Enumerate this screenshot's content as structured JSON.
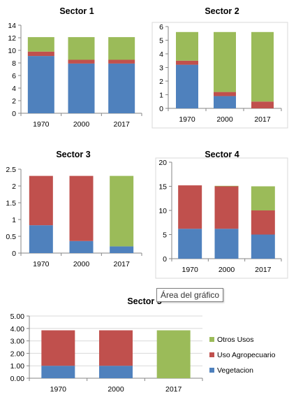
{
  "colors": {
    "vegetacion": "#4f81bd",
    "agropecuario": "#c0504d",
    "otros": "#9bbb59",
    "axis": "#868686",
    "text": "#000000"
  },
  "tooltip": {
    "text": "Área del gráfico"
  },
  "chart_data": [
    {
      "type": "bar",
      "stacked": true,
      "title": "Sector 1",
      "categories": [
        "1970",
        "2000",
        "2017"
      ],
      "ylim": [
        0,
        14
      ],
      "yticks": [
        0,
        2,
        4,
        6,
        8,
        10,
        12,
        14
      ],
      "ytick_labels": [
        "0",
        "2",
        "4",
        "6",
        "8",
        "10",
        "12",
        "14"
      ],
      "grid": false,
      "series": [
        {
          "key": "vegetacion",
          "values": [
            9.1,
            7.9,
            7.9
          ]
        },
        {
          "key": "agropecuario",
          "values": [
            0.7,
            0.6,
            0.6
          ]
        },
        {
          "key": "otros",
          "values": [
            2.3,
            3.6,
            3.6
          ]
        }
      ]
    },
    {
      "type": "bar",
      "stacked": true,
      "title": "Sector 2",
      "categories": [
        "1970",
        "2000",
        "2017"
      ],
      "ylim": [
        0,
        6
      ],
      "yticks": [
        0,
        1,
        2,
        3,
        4,
        5,
        6
      ],
      "ytick_labels": [
        "0",
        "1",
        "2",
        "3",
        "4",
        "5",
        "6"
      ],
      "grid": false,
      "series": [
        {
          "key": "vegetacion",
          "values": [
            3.2,
            0.9,
            0.0
          ]
        },
        {
          "key": "agropecuario",
          "values": [
            0.3,
            0.3,
            0.5
          ]
        },
        {
          "key": "otros",
          "values": [
            2.1,
            4.4,
            5.1
          ]
        }
      ]
    },
    {
      "type": "bar",
      "stacked": true,
      "title": "Sector 3",
      "categories": [
        "1970",
        "2000",
        "2017"
      ],
      "ylim": [
        0,
        2.5
      ],
      "yticks": [
        0,
        0.5,
        1,
        1.5,
        2,
        2.5
      ],
      "ytick_labels": [
        "0",
        "0.5",
        "1",
        "1.5",
        "2",
        "2.5"
      ],
      "grid": false,
      "series": [
        {
          "key": "vegetacion",
          "values": [
            0.83,
            0.36,
            0.2
          ]
        },
        {
          "key": "agropecuario",
          "values": [
            1.47,
            1.94,
            0.0
          ]
        },
        {
          "key": "otros",
          "values": [
            0.0,
            0.0,
            2.1
          ]
        }
      ]
    },
    {
      "type": "bar",
      "stacked": true,
      "title": "Sector 4",
      "categories": [
        "1970",
        "2000",
        "2017"
      ],
      "ylim": [
        0,
        20
      ],
      "yticks": [
        0,
        5,
        10,
        15,
        20
      ],
      "ytick_labels": [
        "0",
        "5",
        "10",
        "15",
        "20"
      ],
      "grid": false,
      "series": [
        {
          "key": "vegetacion",
          "values": [
            6.2,
            6.2,
            5.0
          ]
        },
        {
          "key": "agropecuario",
          "values": [
            9.0,
            8.8,
            5.0
          ]
        },
        {
          "key": "otros",
          "values": [
            0.0,
            0.1,
            5.0
          ]
        }
      ]
    },
    {
      "type": "bar",
      "stacked": true,
      "title": "Sector 5",
      "categories": [
        "1970",
        "2000",
        "2017"
      ],
      "ylim": [
        0,
        5
      ],
      "yticks": [
        0,
        1,
        2,
        3,
        4,
        5
      ],
      "ytick_labels": [
        "0.00",
        "1.00",
        "2.00",
        "3.00",
        "4.00",
        "5.00"
      ],
      "grid": true,
      "series": [
        {
          "name": "Vegetacion",
          "key": "vegetacion",
          "values": [
            1.0,
            1.0,
            0.0
          ]
        },
        {
          "name": "Uso Agropecuario",
          "key": "agropecuario",
          "values": [
            2.85,
            2.85,
            0.0
          ]
        },
        {
          "name": "Otros Usos",
          "key": "otros",
          "values": [
            0.0,
            0.0,
            3.85
          ]
        }
      ],
      "legend_position": "right"
    }
  ]
}
